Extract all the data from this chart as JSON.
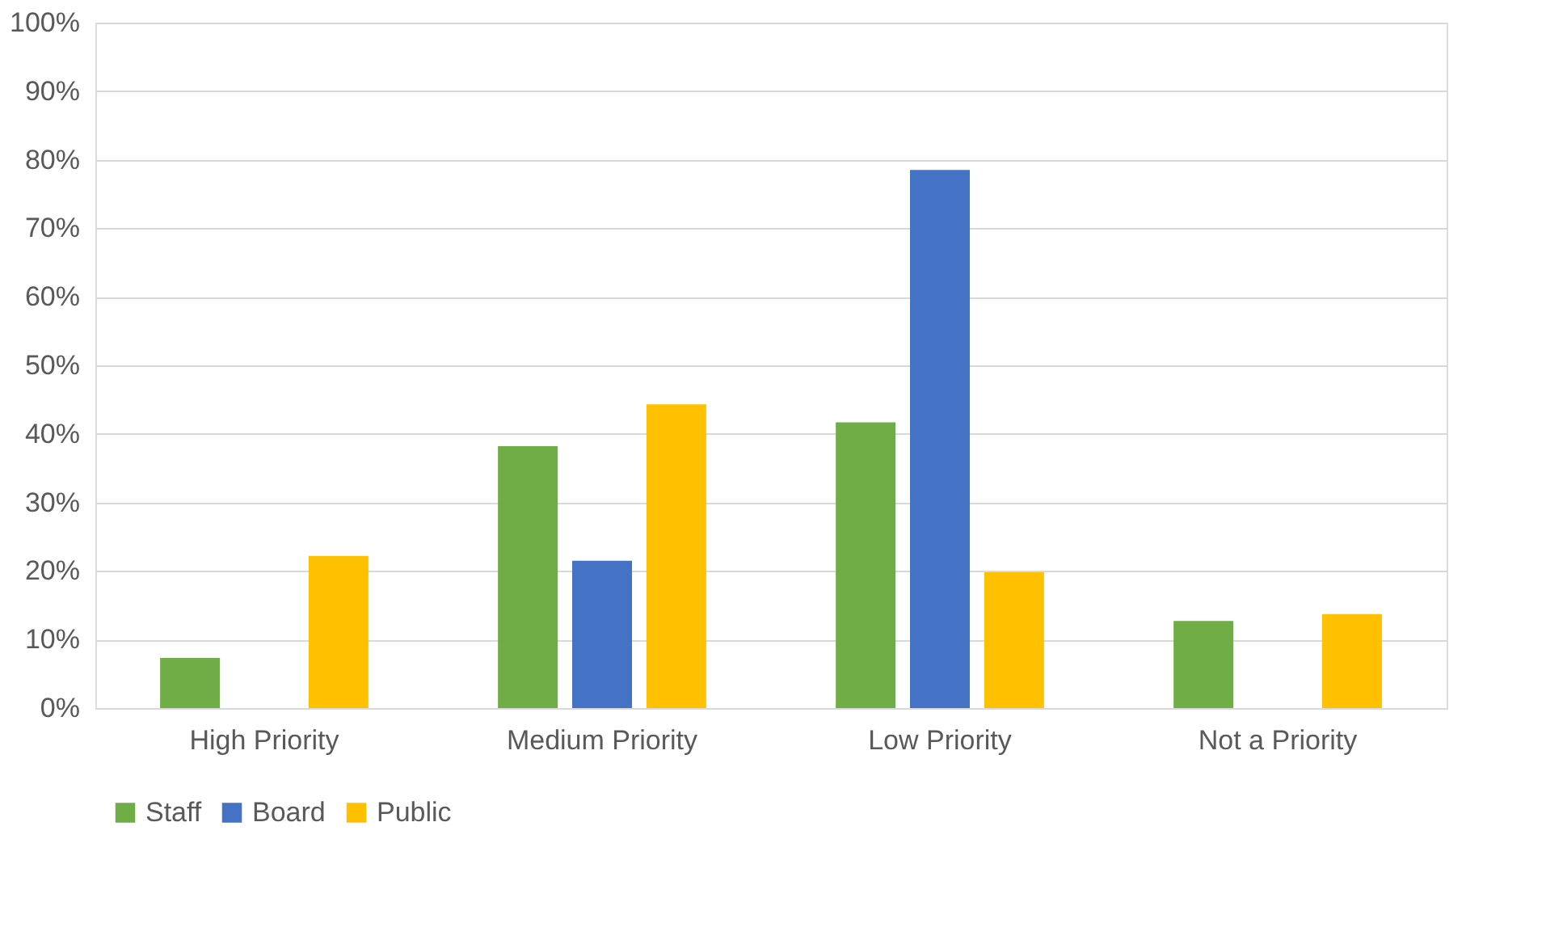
{
  "chart_data": {
    "type": "bar",
    "categories": [
      "High Priority",
      "Medium Priority",
      "Low    Priority",
      "Not a Priority"
    ],
    "series": [
      {
        "name": "Staff",
        "color": "#70ad47",
        "values": [
          7.3,
          38.2,
          41.7,
          12.7
        ]
      },
      {
        "name": "Board",
        "color": "#4472c4",
        "values": [
          0,
          21.5,
          78.5,
          0
        ]
      },
      {
        "name": "Public",
        "color": "#ffc000",
        "values": [
          22.2,
          44.3,
          19.8,
          13.7
        ]
      }
    ],
    "ylim": [
      0,
      100
    ],
    "yticks": [
      {
        "value": 0,
        "label": "0%"
      },
      {
        "value": 10,
        "label": "10%"
      },
      {
        "value": 20,
        "label": "20%"
      },
      {
        "value": 30,
        "label": "30%"
      },
      {
        "value": 40,
        "label": "40%"
      },
      {
        "value": 50,
        "label": "50%"
      },
      {
        "value": 60,
        "label": "60%"
      },
      {
        "value": 70,
        "label": "70%"
      },
      {
        "value": 80,
        "label": "80%"
      },
      {
        "value": 90,
        "label": "90%"
      },
      {
        "value": 100,
        "label": "100%"
      }
    ],
    "grid": "y",
    "legend": "bottom"
  }
}
